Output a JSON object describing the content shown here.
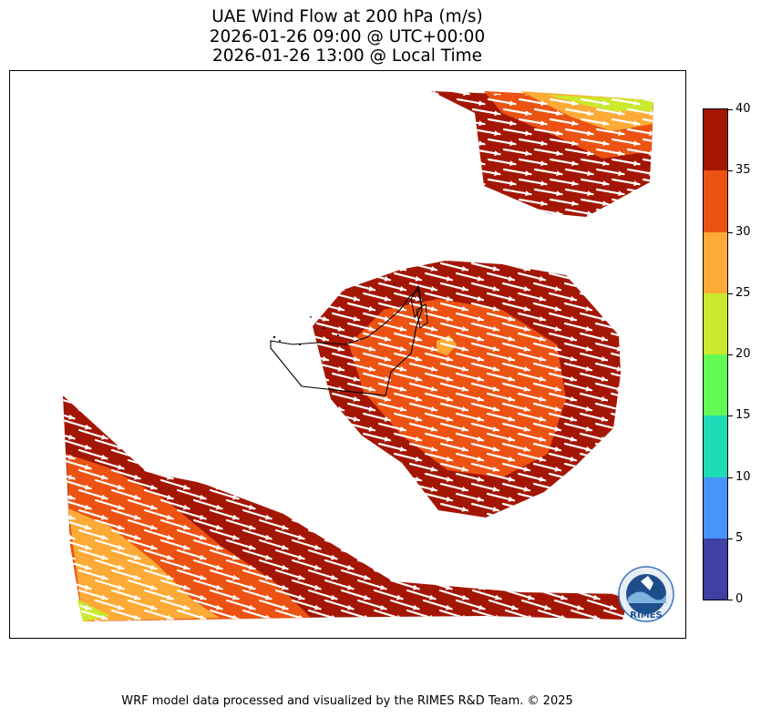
{
  "title": {
    "line1": "UAE Wind Flow at 200 hPa (m/s)",
    "line2": "2026-01-26 09:00 @ UTC+00:00",
    "line3": "2026-01-26 13:00 @ Local Time"
  },
  "colorbar": {
    "ticks": [
      "0",
      "5",
      "10",
      "15",
      "20",
      "25",
      "30",
      "35",
      "40"
    ],
    "levels": [
      {
        "from": 0,
        "to": 5,
        "color": "#3f3fa4"
      },
      {
        "from": 5,
        "to": 10,
        "color": "#4695fa"
      },
      {
        "from": 10,
        "to": 15,
        "color": "#1fdcb9"
      },
      {
        "from": 15,
        "to": 20,
        "color": "#64fa55"
      },
      {
        "from": 20,
        "to": 25,
        "color": "#cbe92d"
      },
      {
        "from": 25,
        "to": 30,
        "color": "#fdab36"
      },
      {
        "from": 30,
        "to": 35,
        "color": "#ec5313"
      },
      {
        "from": 35,
        "to": 40,
        "color": "#a41604"
      }
    ]
  },
  "map": {
    "wind_direction": "west-northwest to east-southeast",
    "dominant_speed_range": "30-40",
    "arrow_color": "#ffffff"
  },
  "logo": {
    "text": "RIMES",
    "ring_text": "Regional Integrated Multi-Hazard Early Warning System"
  },
  "footer": "WRF model data processed and visualized by the RIMES R&D Team. © 2025"
}
